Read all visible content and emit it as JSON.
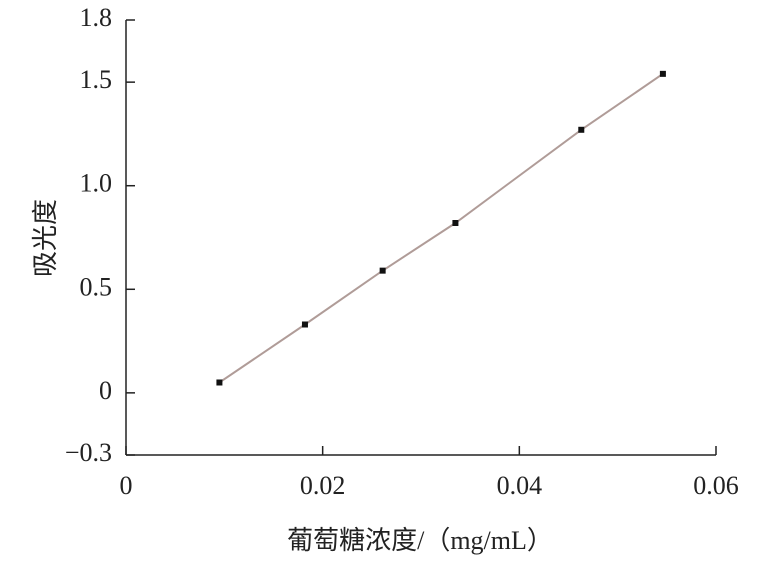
{
  "chart_data": {
    "type": "scatter",
    "x_label": "葡萄糖浓度/（mg/mL）",
    "y_label": "吸光度",
    "x": [
      0.0095,
      0.0182,
      0.0261,
      0.0335,
      0.0463,
      0.0546
    ],
    "series": [
      {
        "values": [
          0.05,
          0.33,
          0.59,
          0.82,
          1.27,
          1.54
        ],
        "color": "#111111",
        "line_color": "#b09c98"
      }
    ],
    "xlim": [
      0,
      0.06
    ],
    "xticks": [
      0,
      0.02,
      0.04,
      0.06
    ],
    "ylim": [
      -0.3,
      1.8
    ],
    "yticks": [
      {
        "value": -0.3,
        "label": "−0.3"
      },
      0,
      0.5,
      {
        "value": 1,
        "label": "1.0"
      },
      1.5,
      1.8
    ]
  }
}
